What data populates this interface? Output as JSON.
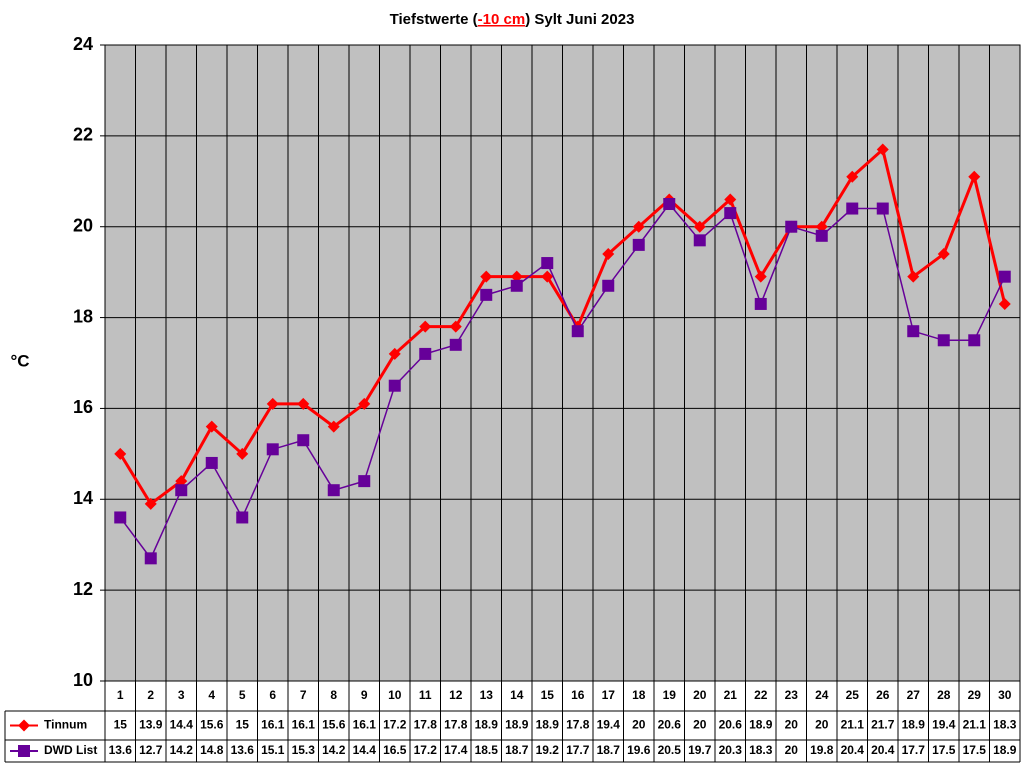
{
  "chart_data": {
    "type": "line",
    "title": [
      "Tiefstwerte (",
      "-10 cm",
      ") Sylt Juni 2023"
    ],
    "ylabel": "°C",
    "categories": [
      "1",
      "2",
      "3",
      "4",
      "5",
      "6",
      "7",
      "8",
      "9",
      "10",
      "11",
      "12",
      "13",
      "14",
      "15",
      "16",
      "17",
      "18",
      "19",
      "20",
      "21",
      "22",
      "23",
      "24",
      "25",
      "26",
      "27",
      "28",
      "29",
      "30"
    ],
    "series": [
      {
        "name": "Tinnum",
        "color": "#ff0000",
        "marker": "diamond",
        "values": [
          15,
          13.9,
          14.4,
          15.6,
          15,
          16.1,
          16.1,
          15.6,
          16.1,
          17.2,
          17.8,
          17.8,
          18.9,
          18.9,
          18.9,
          17.8,
          19.4,
          20,
          20.6,
          20,
          20.6,
          18.9,
          20,
          20,
          21.1,
          21.7,
          18.9,
          19.4,
          21.1,
          18.3
        ]
      },
      {
        "name": "DWD List",
        "color": "#660099",
        "marker": "square",
        "values": [
          13.6,
          12.7,
          14.2,
          14.8,
          13.6,
          15.1,
          15.3,
          14.2,
          14.4,
          16.5,
          17.2,
          17.4,
          18.5,
          18.7,
          19.2,
          17.7,
          18.7,
          19.6,
          20.5,
          19.7,
          20.3,
          18.3,
          20,
          19.8,
          20.4,
          20.4,
          17.7,
          17.5,
          17.5,
          18.9
        ]
      }
    ],
    "ylim": [
      10,
      24
    ],
    "yticks": [
      10,
      12,
      14,
      16,
      18,
      20,
      22,
      24
    ],
    "grid": true,
    "data_table": true
  }
}
